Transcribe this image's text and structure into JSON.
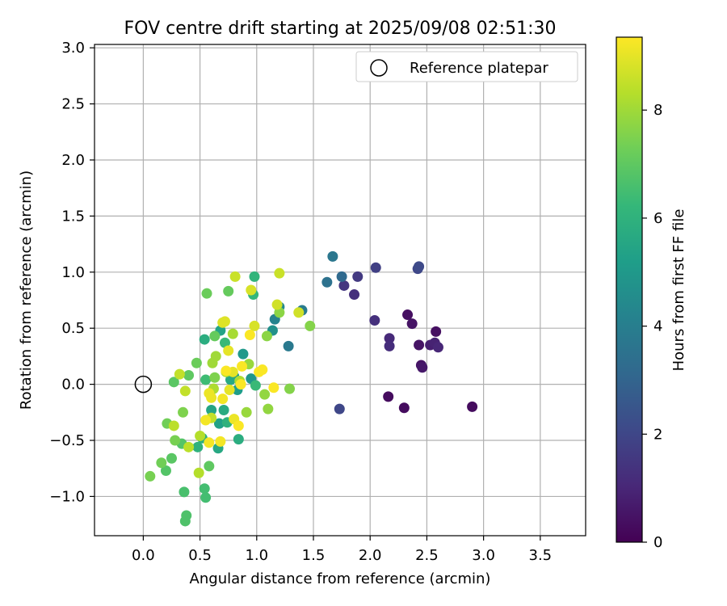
{
  "chart_data": {
    "type": "scatter",
    "title": "FOV centre drift starting at 2025/09/08 02:51:30",
    "xlabel": "Angular distance from reference (arcmin)",
    "ylabel": "Rotation from reference (arcmin)",
    "xlim": [
      -0.43,
      3.9
    ],
    "ylim": [
      -1.35,
      3.03
    ],
    "x_ticks": [
      0.0,
      0.5,
      1.0,
      1.5,
      2.0,
      2.5,
      3.0,
      3.5
    ],
    "x_tick_labels": [
      "0.0",
      "0.5",
      "1.0",
      "1.5",
      "2.0",
      "2.5",
      "3.0",
      "3.5"
    ],
    "y_ticks": [
      -1.0,
      -0.5,
      0.0,
      0.5,
      1.0,
      1.5,
      2.0,
      2.5,
      3.0
    ],
    "y_tick_labels": [
      "−1.0",
      "−0.5",
      "0.0",
      "0.5",
      "1.0",
      "1.5",
      "2.0",
      "2.5",
      "3.0"
    ],
    "grid": true,
    "legend": {
      "position": "top-right",
      "entries": [
        "Reference platepar"
      ]
    },
    "reference_point": {
      "x": 0.0,
      "y": 0.0
    },
    "colorbar": {
      "label": "Hours from first FF file",
      "range": [
        0,
        9.35
      ],
      "ticks": [
        0,
        2,
        4,
        6,
        8
      ],
      "tick_labels": [
        "0",
        "2",
        "4",
        "6",
        "8"
      ],
      "colormap": [
        "#440154",
        "#482878",
        "#3e4989",
        "#31688e",
        "#26828e",
        "#1f9e89",
        "#35b779",
        "#6ece58",
        "#b5de2b",
        "#fde725"
      ]
    },
    "points": [
      {
        "x": 2.9,
        "y": -0.2,
        "h": 0.3
      },
      {
        "x": 2.3,
        "y": -0.21,
        "h": 0.3
      },
      {
        "x": 2.16,
        "y": -0.11,
        "h": 0.3
      },
      {
        "x": 2.58,
        "y": 0.47,
        "h": 0.4
      },
      {
        "x": 2.33,
        "y": 0.62,
        "h": 0.4
      },
      {
        "x": 2.37,
        "y": 0.54,
        "h": 0.5
      },
      {
        "x": 2.43,
        "y": 0.35,
        "h": 0.5
      },
      {
        "x": 2.45,
        "y": 0.17,
        "h": 0.5
      },
      {
        "x": 2.46,
        "y": 0.15,
        "h": 0.6
      },
      {
        "x": 2.53,
        "y": 0.35,
        "h": 0.8
      },
      {
        "x": 2.57,
        "y": 0.37,
        "h": 0.9
      },
      {
        "x": 2.6,
        "y": 0.33,
        "h": 1.0
      },
      {
        "x": 2.17,
        "y": 0.41,
        "h": 1.1
      },
      {
        "x": 2.17,
        "y": 0.34,
        "h": 1.2
      },
      {
        "x": 2.04,
        "y": 0.57,
        "h": 1.3
      },
      {
        "x": 1.86,
        "y": 0.8,
        "h": 1.3
      },
      {
        "x": 1.77,
        "y": 0.88,
        "h": 1.5
      },
      {
        "x": 1.89,
        "y": 0.96,
        "h": 1.6
      },
      {
        "x": 2.05,
        "y": 1.04,
        "h": 1.8
      },
      {
        "x": 2.42,
        "y": 1.03,
        "h": 2.0
      },
      {
        "x": 2.43,
        "y": 1.05,
        "h": 2.1
      },
      {
        "x": 1.73,
        "y": -0.22,
        "h": 2.0
      },
      {
        "x": 1.75,
        "y": 0.96,
        "h": 3.2
      },
      {
        "x": 1.62,
        "y": 0.91,
        "h": 3.5
      },
      {
        "x": 1.67,
        "y": 1.14,
        "h": 3.7
      },
      {
        "x": 1.28,
        "y": 0.34,
        "h": 3.8
      },
      {
        "x": 1.4,
        "y": 0.66,
        "h": 3.9
      },
      {
        "x": 1.16,
        "y": 0.58,
        "h": 4.2
      },
      {
        "x": 1.2,
        "y": 0.69,
        "h": 4.4
      },
      {
        "x": 1.14,
        "y": 0.48,
        "h": 4.7
      },
      {
        "x": 0.95,
        "y": 0.05,
        "h": 4.9
      },
      {
        "x": 0.88,
        "y": 0.27,
        "h": 5.0
      },
      {
        "x": 0.8,
        "y": 0.07,
        "h": 5.1
      },
      {
        "x": 0.83,
        "y": -0.05,
        "h": 5.2
      },
      {
        "x": 0.67,
        "y": -0.35,
        "h": 5.3
      },
      {
        "x": 0.68,
        "y": 0.48,
        "h": 5.4
      },
      {
        "x": 0.6,
        "y": -0.23,
        "h": 5.5
      },
      {
        "x": 0.66,
        "y": -0.57,
        "h": 5.6
      },
      {
        "x": 0.77,
        "y": 0.04,
        "h": 5.6
      },
      {
        "x": 0.71,
        "y": -0.23,
        "h": 5.7
      },
      {
        "x": 0.84,
        "y": -0.49,
        "h": 5.8
      },
      {
        "x": 0.54,
        "y": 0.4,
        "h": 5.8
      },
      {
        "x": 0.52,
        "y": -0.48,
        "h": 5.9
      },
      {
        "x": 0.48,
        "y": -0.56,
        "h": 6.0
      },
      {
        "x": 0.74,
        "y": -0.34,
        "h": 6.0
      },
      {
        "x": 0.98,
        "y": 0.96,
        "h": 6.1
      },
      {
        "x": 0.97,
        "y": 0.8,
        "h": 6.2
      },
      {
        "x": 0.99,
        "y": -0.01,
        "h": 6.3
      },
      {
        "x": 0.72,
        "y": 0.37,
        "h": 6.3
      },
      {
        "x": 0.55,
        "y": 0.04,
        "h": 6.4
      },
      {
        "x": 0.54,
        "y": -0.93,
        "h": 6.5
      },
      {
        "x": 0.55,
        "y": -1.01,
        "h": 6.5
      },
      {
        "x": 0.36,
        "y": -0.96,
        "h": 6.6
      },
      {
        "x": 0.38,
        "y": -1.17,
        "h": 6.7
      },
      {
        "x": 0.37,
        "y": -1.22,
        "h": 6.7
      },
      {
        "x": 0.34,
        "y": -0.53,
        "h": 6.8
      },
      {
        "x": 0.2,
        "y": -0.77,
        "h": 6.8
      },
      {
        "x": 0.25,
        "y": -0.66,
        "h": 6.9
      },
      {
        "x": 0.27,
        "y": 0.02,
        "h": 6.9
      },
      {
        "x": 0.4,
        "y": 0.08,
        "h": 7.0
      },
      {
        "x": 0.58,
        "y": -0.73,
        "h": 7.0
      },
      {
        "x": 0.75,
        "y": 0.83,
        "h": 7.1
      },
      {
        "x": 0.63,
        "y": 0.43,
        "h": 7.1
      },
      {
        "x": 0.56,
        "y": 0.81,
        "h": 7.2
      },
      {
        "x": 0.47,
        "y": 0.19,
        "h": 7.2
      },
      {
        "x": 0.21,
        "y": -0.35,
        "h": 7.3
      },
      {
        "x": 0.16,
        "y": -0.7,
        "h": 7.3
      },
      {
        "x": 0.06,
        "y": -0.82,
        "h": 7.4
      },
      {
        "x": 0.28,
        "y": -0.5,
        "h": 7.4
      },
      {
        "x": 0.35,
        "y": -0.25,
        "h": 7.5
      },
      {
        "x": 0.63,
        "y": 0.06,
        "h": 7.5
      },
      {
        "x": 1.47,
        "y": 0.52,
        "h": 7.6
      },
      {
        "x": 1.29,
        "y": -0.04,
        "h": 7.6
      },
      {
        "x": 1.2,
        "y": 0.64,
        "h": 7.7
      },
      {
        "x": 1.09,
        "y": 0.43,
        "h": 7.7
      },
      {
        "x": 1.07,
        "y": -0.09,
        "h": 7.8
      },
      {
        "x": 1.1,
        "y": -0.22,
        "h": 7.8
      },
      {
        "x": 0.91,
        "y": -0.25,
        "h": 7.9
      },
      {
        "x": 0.93,
        "y": 0.18,
        "h": 7.9
      },
      {
        "x": 0.64,
        "y": 0.25,
        "h": 8.0
      },
      {
        "x": 0.61,
        "y": 0.19,
        "h": 8.0
      },
      {
        "x": 0.73,
        "y": 0.11,
        "h": 8.1
      },
      {
        "x": 0.79,
        "y": 0.45,
        "h": 8.1
      },
      {
        "x": 0.85,
        "y": 0.03,
        "h": 8.2
      },
      {
        "x": 0.62,
        "y": -0.04,
        "h": 8.2
      },
      {
        "x": 0.5,
        "y": -0.46,
        "h": 8.3
      },
      {
        "x": 0.49,
        "y": -0.79,
        "h": 8.3
      },
      {
        "x": 0.4,
        "y": -0.56,
        "h": 8.4
      },
      {
        "x": 0.27,
        "y": -0.37,
        "h": 8.4
      },
      {
        "x": 0.32,
        "y": 0.09,
        "h": 8.5
      },
      {
        "x": 0.37,
        "y": -0.06,
        "h": 8.5
      },
      {
        "x": 0.6,
        "y": -0.3,
        "h": 8.5
      },
      {
        "x": 0.81,
        "y": 0.96,
        "h": 8.6
      },
      {
        "x": 1.2,
        "y": 0.99,
        "h": 8.6
      },
      {
        "x": 1.37,
        "y": 0.64,
        "h": 8.7
      },
      {
        "x": 1.18,
        "y": 0.71,
        "h": 8.7
      },
      {
        "x": 0.98,
        "y": 0.52,
        "h": 8.8
      },
      {
        "x": 0.95,
        "y": 0.84,
        "h": 8.8
      },
      {
        "x": 0.7,
        "y": 0.55,
        "h": 8.9
      },
      {
        "x": 0.72,
        "y": 0.56,
        "h": 8.9
      },
      {
        "x": 0.79,
        "y": 0.11,
        "h": 9.0
      },
      {
        "x": 0.75,
        "y": 0.3,
        "h": 9.0
      },
      {
        "x": 0.76,
        "y": -0.05,
        "h": 9.0
      },
      {
        "x": 0.8,
        "y": -0.31,
        "h": 9.1
      },
      {
        "x": 0.58,
        "y": -0.08,
        "h": 9.1
      },
      {
        "x": 0.6,
        "y": -0.12,
        "h": 9.1
      },
      {
        "x": 0.58,
        "y": -0.52,
        "h": 9.2
      },
      {
        "x": 0.55,
        "y": -0.32,
        "h": 9.2
      },
      {
        "x": 0.68,
        "y": -0.51,
        "h": 9.2
      },
      {
        "x": 0.7,
        "y": -0.13,
        "h": 9.2
      },
      {
        "x": 0.73,
        "y": 0.12,
        "h": 9.3
      },
      {
        "x": 0.87,
        "y": 0.16,
        "h": 9.3
      },
      {
        "x": 0.84,
        "y": -0.37,
        "h": 9.3
      },
      {
        "x": 0.94,
        "y": 0.44,
        "h": 9.3
      },
      {
        "x": 1.02,
        "y": 0.11,
        "h": 9.3
      },
      {
        "x": 1.05,
        "y": 0.13,
        "h": 9.3
      },
      {
        "x": 1.15,
        "y": -0.03,
        "h": 9.3
      },
      {
        "x": 0.86,
        "y": 0.0,
        "h": 9.3
      }
    ]
  }
}
